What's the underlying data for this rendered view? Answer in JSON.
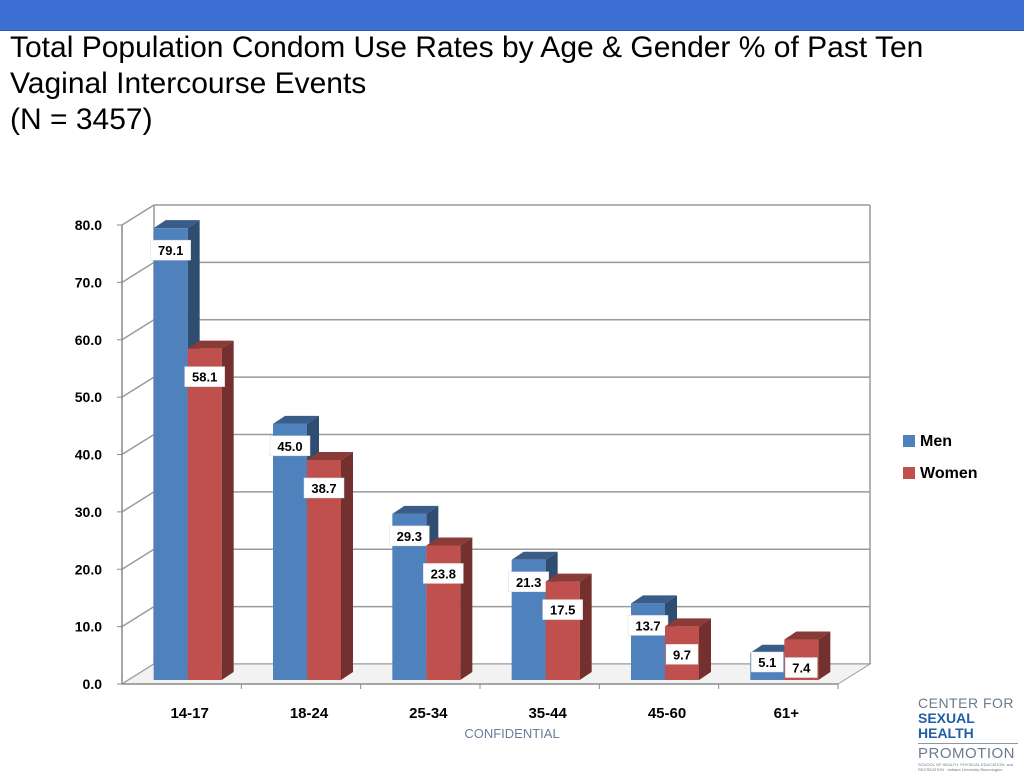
{
  "slide": {
    "title_lines": [
      "Total Population Condom Use Rates by Age & Gender % of Past Ten",
      "Vaginal Intercourse Events",
      "(N = 3457)"
    ],
    "footer": "CONFIDENTIAL",
    "logo": {
      "line1": "CENTER FOR",
      "line2": "SEXUAL HEALTH",
      "line3": "PROMOTION",
      "line4": "SCHOOL OF HEALTH, PHYSICAL EDUCATION, and RECREATION · Indiana University Bloomington"
    }
  },
  "chart_data": {
    "type": "bar",
    "categories": [
      "14-17",
      "18-24",
      "25-34",
      "35-44",
      "45-60",
      "61+"
    ],
    "series": [
      {
        "name": "Men",
        "values": [
          79.1,
          45.0,
          29.3,
          21.3,
          13.7,
          5.1
        ],
        "color": "#4f81bd"
      },
      {
        "name": "Women",
        "values": [
          58.1,
          38.7,
          23.8,
          17.5,
          9.7,
          7.4
        ],
        "color": "#c0504d"
      }
    ],
    "data_labels": [
      [
        "79.1",
        "45.0",
        "29.3",
        "21.3",
        "13.7",
        "5.1"
      ],
      [
        "58.1",
        "38.7",
        "23.8",
        "17.5",
        "9.7",
        "7.4"
      ]
    ],
    "y_ticks": [
      "0.0",
      "10.0",
      "20.0",
      "30.0",
      "40.0",
      "50.0",
      "60.0",
      "70.0",
      "80.0"
    ],
    "ylim": [
      0,
      80
    ],
    "grid": true,
    "legend": "right",
    "title": "",
    "xlabel": "",
    "ylabel": ""
  }
}
